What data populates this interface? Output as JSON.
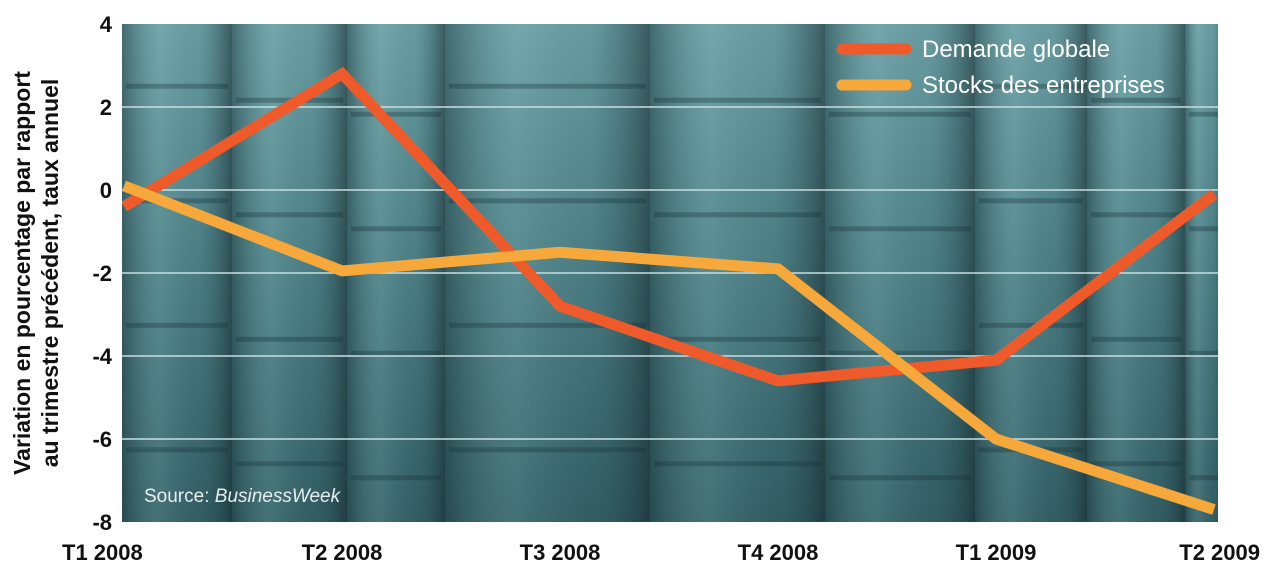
{
  "chart_data": {
    "type": "line",
    "title": "",
    "xlabel": "",
    "ylabel_lines": [
      "Variation en pourcentage par rapport",
      "au trimestre précédent, taux annuel"
    ],
    "categories": [
      "T1 2008",
      "T2 2008",
      "T3 2008",
      "T4 2008",
      "T1 2009",
      "T2 2009"
    ],
    "yticks": [
      "4",
      "2",
      "0",
      "-2",
      "-4",
      "-6",
      "-8"
    ],
    "ylim": [
      -8,
      4
    ],
    "grid": true,
    "legend_position": "top-right",
    "series": [
      {
        "name": "Demande globale",
        "color": "#ee5a2a",
        "values": [
          -0.4,
          2.8,
          -2.8,
          -4.6,
          -4.1,
          -0.1
        ]
      },
      {
        "name": "Stocks des entreprises",
        "color": "#f7a83a",
        "values": [
          0.1,
          -1.95,
          -1.5,
          -1.9,
          -6.0,
          -7.7
        ]
      }
    ],
    "source_label": "Source: ",
    "source_name": "BusinessWeek",
    "background": "photo of steel barrels (teal tint)"
  }
}
